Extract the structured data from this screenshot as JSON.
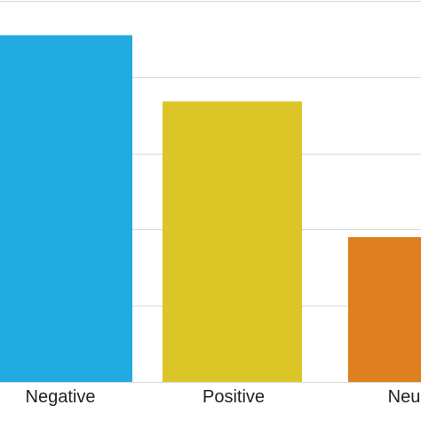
{
  "chart_data": {
    "type": "bar",
    "categories": [
      "Negative",
      "Positive",
      "Neu"
    ],
    "values": [
      45.5,
      36.8,
      19.0
    ],
    "colors": [
      "#22abe0",
      "#dcc526",
      "#e07f1f"
    ],
    "ylim": [
      0,
      50
    ],
    "grid": true,
    "legend": "none",
    "title": "",
    "xlabel": "",
    "ylabel": ""
  }
}
